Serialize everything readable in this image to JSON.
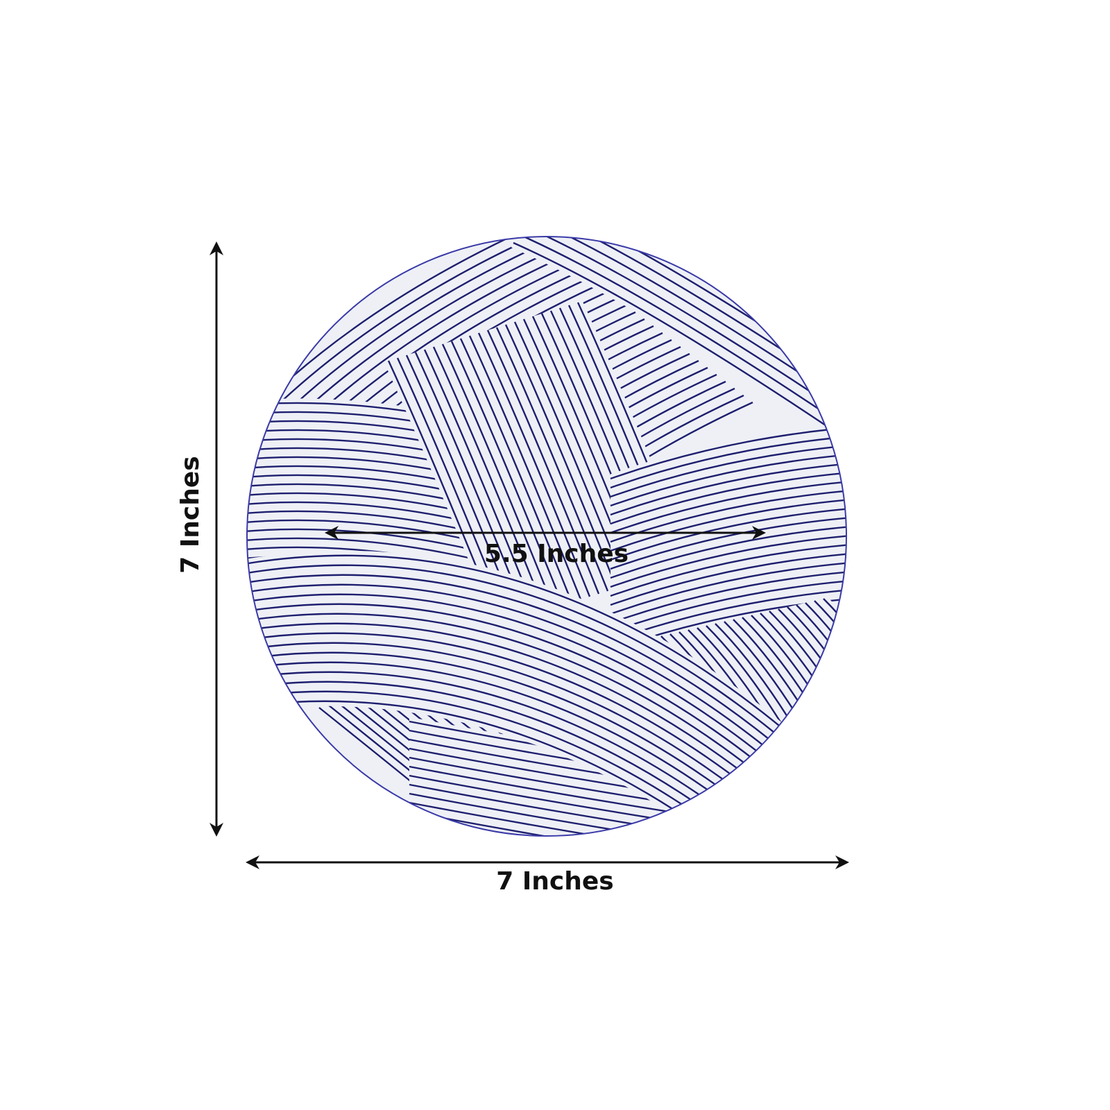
{
  "dimensions": {
    "height_label": "7 Inches",
    "width_label": "7 Inches",
    "inner_label": "5.5 Inches"
  },
  "product": {
    "shape": "round placemat / charger",
    "pattern": "woven swirl lines",
    "colors": {
      "line": "#1e1f6e",
      "base": "#eef0f6",
      "rim": "#3a3aa8"
    }
  },
  "colors": {
    "arrow": "#111111",
    "background": "#ffffff"
  }
}
